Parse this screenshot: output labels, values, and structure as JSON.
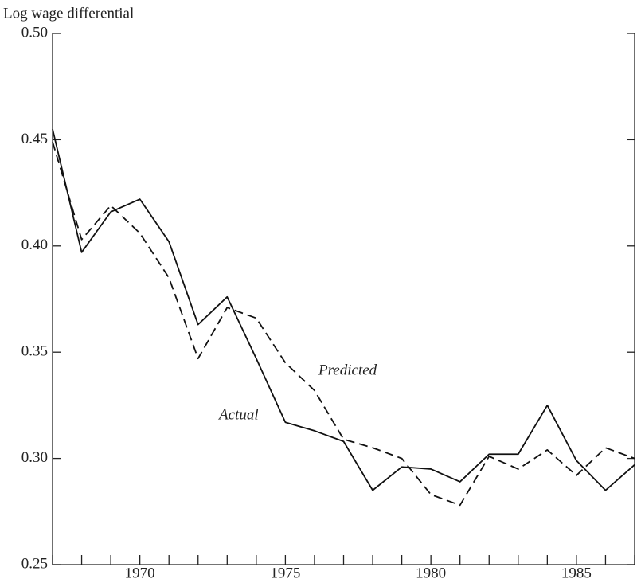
{
  "chart_data": {
    "type": "line",
    "y_label": "Log wage differential",
    "x": [
      1967,
      1968,
      1969,
      1970,
      1971,
      1972,
      1973,
      1974,
      1975,
      1976,
      1977,
      1978,
      1979,
      1980,
      1981,
      1982,
      1983,
      1984,
      1985,
      1986,
      1987
    ],
    "series": [
      {
        "name": "Actual",
        "color": "#111111",
        "dash": false,
        "values": [
          0.455,
          0.397,
          0.416,
          0.422,
          0.402,
          0.363,
          0.376,
          0.347,
          0.317,
          0.313,
          0.308,
          0.285,
          0.296,
          0.295,
          0.289,
          0.302,
          0.302,
          0.325,
          0.299,
          0.285,
          0.297
        ]
      },
      {
        "name": "Predicted",
        "color": "#111111",
        "dash": true,
        "values": [
          0.449,
          0.403,
          0.419,
          0.406,
          0.385,
          0.347,
          0.371,
          0.366,
          0.345,
          0.332,
          0.309,
          0.305,
          0.3,
          0.283,
          0.278,
          0.301,
          0.295,
          0.304,
          0.292,
          0.305,
          0.3
        ]
      }
    ],
    "xlim": [
      1967,
      1987
    ],
    "xticks": [
      1970,
      1975,
      1980,
      1985
    ],
    "ylim": [
      0.25,
      0.5
    ],
    "yticks": [
      0.25,
      {
        "value": 0.3,
        "label": "0.30"
      },
      0.35,
      {
        "value": 0.4,
        "label": "0.40"
      },
      0.45,
      {
        "value": 0.5,
        "label": "0.50"
      }
    ],
    "grid": false
  }
}
